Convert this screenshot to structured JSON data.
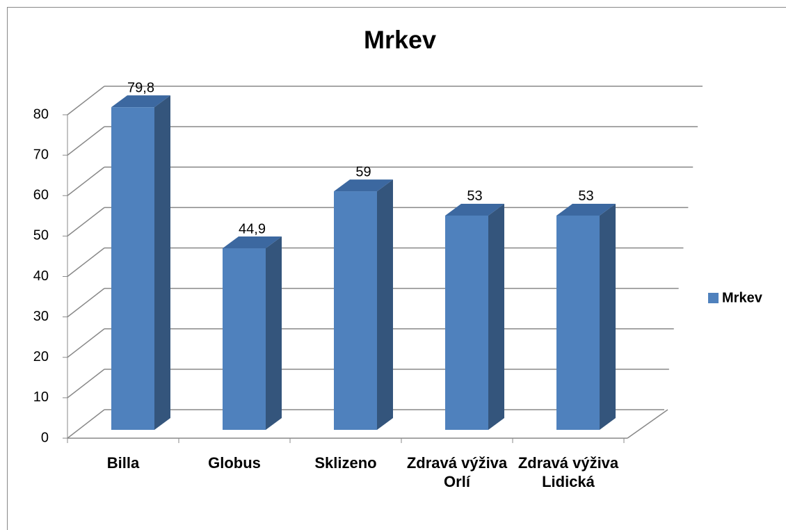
{
  "chart_data": {
    "type": "bar3d",
    "title": "Mrkev",
    "categories": [
      "Billa",
      "Globus",
      "Sklizeno",
      "Zdravá výživa Orlí",
      "Zdravá výživa Lidická"
    ],
    "series": [
      {
        "name": "Mrkev",
        "color": "#4f81bd",
        "values": [
          79.8,
          44.9,
          59,
          53,
          53
        ],
        "value_labels": [
          "79,8",
          "44,9",
          "59",
          "53",
          "53"
        ]
      }
    ],
    "ylim": [
      0,
      80
    ],
    "yticks": [
      0,
      10,
      20,
      30,
      40,
      50,
      60,
      70,
      80
    ],
    "grid": true,
    "legend": "right"
  }
}
